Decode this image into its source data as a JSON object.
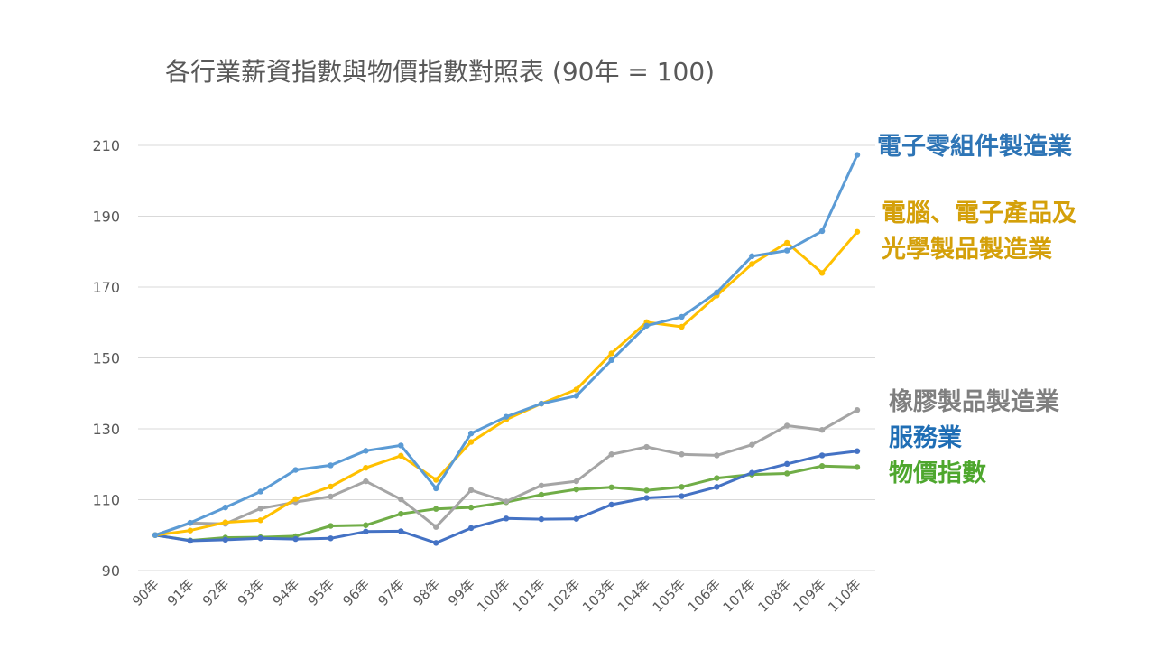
{
  "chart_data": {
    "type": "line",
    "title": "各行業薪資指數與物價指數對照表 (90年 = 100)",
    "xlabel": "",
    "ylabel": "",
    "ylim": [
      90,
      210
    ],
    "yticks": [
      90,
      110,
      130,
      150,
      170,
      190,
      210
    ],
    "grid": true,
    "categories": [
      "90年",
      "91年",
      "92年",
      "93年",
      "94年",
      "95年",
      "96年",
      "97年",
      "98年",
      "99年",
      "100年",
      "101年",
      "102年",
      "103年",
      "104年",
      "105年",
      "106年",
      "107年",
      "108年",
      "109年",
      "110年"
    ],
    "series": [
      {
        "name": "電子零組件製造業",
        "label_lines": [
          "電子零組件製造業"
        ],
        "color": "#5B9BD5",
        "label_color": "#2E75B6",
        "values": [
          100,
          103.5,
          107.8,
          112.3,
          118.4,
          119.7,
          123.8,
          125.3,
          113.2,
          128.7,
          133.4,
          137.1,
          139.3,
          149.4,
          159.1,
          161.6,
          168.5,
          178.7,
          180.3,
          185.8,
          207.3
        ]
      },
      {
        "name": "電腦、電子產品及光學製品製造業",
        "label_lines": [
          "電腦、電子產品及",
          "光學製品製造業"
        ],
        "color": "#FFC000",
        "label_color": "#D4A00A",
        "values": [
          100,
          101.3,
          103.6,
          104.2,
          110.2,
          113.7,
          119.0,
          122.4,
          115.6,
          126.3,
          132.6,
          137.1,
          141.1,
          151.3,
          160.1,
          158.8,
          167.6,
          176.5,
          182.5,
          174.0,
          185.6
        ]
      },
      {
        "name": "橡膠製品製造業",
        "label_lines": [
          "橡膠製品製造業"
        ],
        "color": "#A5A5A5",
        "label_color": "#7F7F7F",
        "values": [
          100,
          103.4,
          103.2,
          107.5,
          109.3,
          110.9,
          115.2,
          110.1,
          102.3,
          112.7,
          109.5,
          114.0,
          115.2,
          122.8,
          124.9,
          122.8,
          122.5,
          125.5,
          130.9,
          129.7,
          135.3
        ]
      },
      {
        "name": "服務業",
        "label_lines": [
          "服務業"
        ],
        "color": "#4472C4",
        "label_color": "#1F6EB5",
        "values": [
          100,
          98.4,
          98.7,
          99.1,
          98.9,
          99.1,
          101.0,
          101.1,
          97.8,
          102.0,
          104.7,
          104.5,
          104.6,
          108.6,
          110.5,
          111.0,
          113.6,
          117.6,
          120.1,
          122.5,
          123.7
        ]
      },
      {
        "name": "物價指數",
        "label_lines": [
          "物價指數"
        ],
        "color": "#70AD47",
        "label_color": "#4EA72E",
        "values": [
          100,
          98.5,
          99.3,
          99.4,
          99.7,
          102.6,
          102.8,
          106.0,
          107.4,
          107.8,
          109.3,
          111.4,
          112.9,
          113.5,
          112.6,
          113.6,
          116.1,
          117.1,
          117.4,
          119.5,
          119.2
        ]
      }
    ]
  }
}
